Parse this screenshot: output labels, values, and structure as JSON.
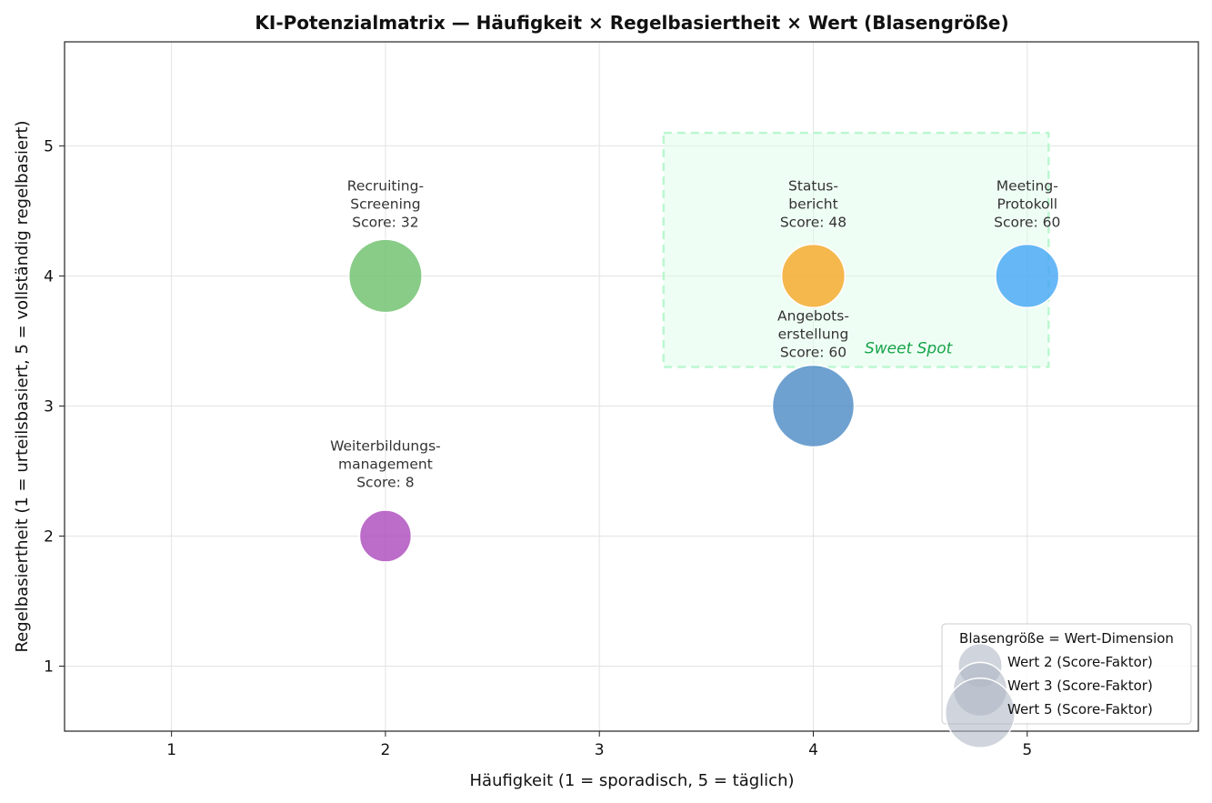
{
  "chart_data": {
    "type": "scatter",
    "title": "KI-Potenzialmatrix — Häufigkeit × Regelbasiertheit × Wert (Blasengröße)",
    "xlabel": "Häufigkeit (1 = sporadisch, 5 = täglich)",
    "ylabel": "Regelbasiertheit (1 = urteilsbasiert, 5 = vollständig regelbasiert)",
    "xlim": [
      0.5,
      5.8
    ],
    "ylim": [
      0.5,
      5.8
    ],
    "xticks": [
      1,
      2,
      3,
      4,
      5
    ],
    "yticks": [
      1,
      2,
      3,
      4,
      5
    ],
    "grid": true,
    "points": [
      {
        "label_lines": [
          "Recruiting-",
          "Screening",
          "Score: 32"
        ],
        "x": 2,
        "y": 4,
        "value": 4,
        "color": "#6abf69"
      },
      {
        "label_lines": [
          "Weiterbildungs-",
          "management",
          "Score: 8"
        ],
        "x": 2,
        "y": 2,
        "value": 2,
        "color": "#ab47bc"
      },
      {
        "label_lines": [
          "Status-",
          "bericht",
          "Score: 48"
        ],
        "x": 4,
        "y": 4,
        "value": 3,
        "color": "#f5a623"
      },
      {
        "label_lines": [
          "Angebots-",
          "erstellung",
          "Score: 60"
        ],
        "x": 4,
        "y": 3,
        "value": 5,
        "color": "#4a8ac4"
      },
      {
        "label_lines": [
          "Meeting-",
          "Protokoll",
          "Score: 60"
        ],
        "x": 5,
        "y": 4,
        "value": 3,
        "color": "#42a5f5"
      }
    ],
    "sweet_spot": {
      "x": [
        3.3,
        5.1
      ],
      "y": [
        3.3,
        5.1
      ],
      "label": "Sweet Spot",
      "color": "#16a34a"
    },
    "legend": {
      "placement": "lower-right",
      "title": "Blasengröße = Wert-Dimension",
      "entries": [
        {
          "label": "Wert 2 (Score-Faktor)",
          "value": 2
        },
        {
          "label": "Wert 3 (Score-Faktor)",
          "value": 3
        },
        {
          "label": "Wert 5 (Score-Faktor)",
          "value": 5
        }
      ],
      "color": "#b0b8c4"
    }
  }
}
